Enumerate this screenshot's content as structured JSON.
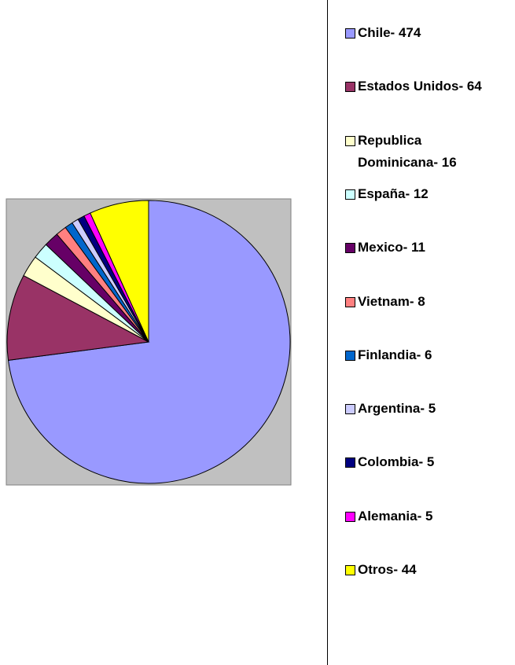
{
  "chart_data": {
    "type": "pie",
    "categories": [
      "Chile- 474",
      "Estados Unidos- 64",
      "Republica Dominicana- 16",
      "España- 12",
      "Mexico- 11",
      "Vietnam- 8",
      "Finlandia- 6",
      "Argentina- 5",
      "Colombia- 5",
      "Alemania- 5",
      "Otros- 44"
    ],
    "values": [
      474,
      64,
      16,
      12,
      11,
      8,
      6,
      5,
      5,
      5,
      44
    ],
    "colors": [
      "#9999ff",
      "#993366",
      "#ffffcc",
      "#ccffff",
      "#660066",
      "#ff8080",
      "#0066cc",
      "#ccccff",
      "#000080",
      "#ff00ff",
      "#ffff00"
    ],
    "legend": "right"
  }
}
